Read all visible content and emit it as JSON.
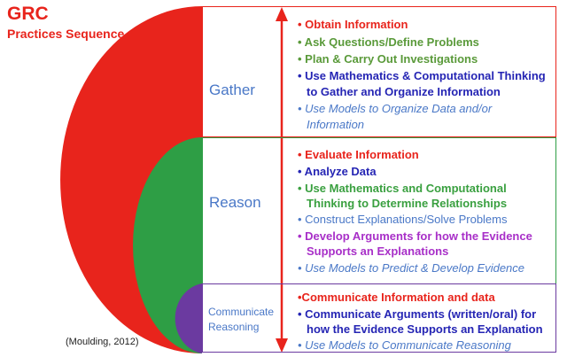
{
  "title": "GRC",
  "subtitle": "Practices Sequence",
  "citation": "(Moulding, 2012)",
  "colors": {
    "red": "#e8241c",
    "green": "#2e9e45",
    "purple": "#6b3aa0",
    "navy": "#2525b4",
    "blue": "#4a78c7",
    "magenta": "#a82fc8"
  },
  "stages": {
    "gather": {
      "label": "Gather",
      "items": [
        "• Obtain Information",
        "• Ask Questions/Define Problems",
        "• Plan & Carry Out Investigations",
        "• Use Mathematics & Computational Thinking",
        "to Gather and Organize  Information",
        "• Use Models to Organize Data and/or",
        "Information"
      ]
    },
    "reason": {
      "label": "Reason",
      "items": [
        "• Evaluate Information",
        "• Analyze Data",
        "• Use Mathematics and Computational",
        "Thinking to Determine Relationships",
        "• Construct Explanations/Solve Problems",
        "• Develop Arguments for how the Evidence",
        "Supports an Explanations",
        "• Use Models to Predict & Develop Evidence"
      ]
    },
    "communicate": {
      "label_line1": "Communicate",
      "label_line2": "Reasoning",
      "items": [
        "•Communicate Information and data",
        "• Communicate Arguments (written/oral) for",
        "how the Evidence Supports an Explanation",
        "• Use Models to Communicate Reasoning"
      ]
    }
  }
}
